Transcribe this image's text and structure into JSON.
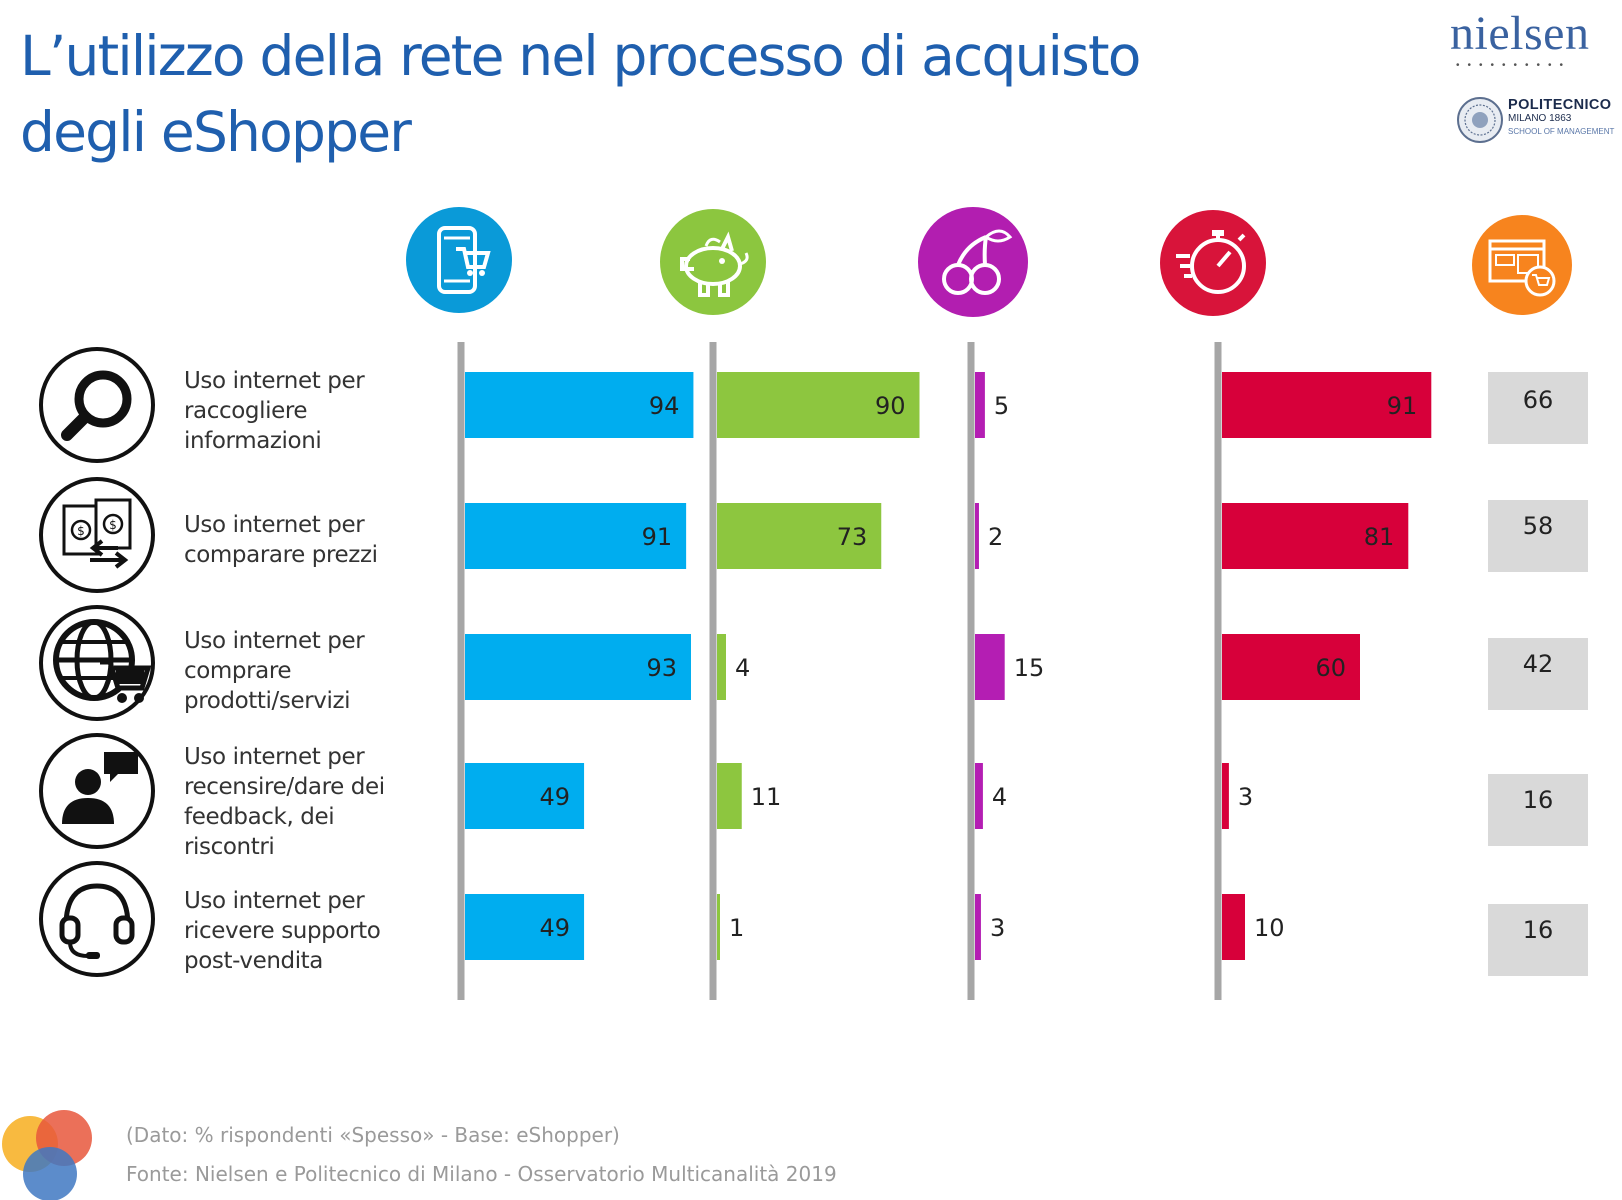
{
  "title": {
    "line1": "L’utilizzo della rete nel processo di acquisto",
    "line2": "degli eShopper"
  },
  "logos": {
    "nielsen": "nielsen",
    "polimi_name": "POLITECNICO",
    "polimi_city": "MILANO 1863",
    "polimi_school": "SCHOOL OF MANAGEMENT"
  },
  "segments": [
    {
      "icon": "smartphone-cart-icon",
      "color": "#0a9ad8"
    },
    {
      "icon": "piggy-bank-icon",
      "color": "#8cc63f"
    },
    {
      "icon": "cherries-icon",
      "color": "#b21eb0"
    },
    {
      "icon": "stopwatch-icon",
      "color": "#d8143a"
    },
    {
      "icon": "ecommerce-screen-icon",
      "color": "#f7841e"
    }
  ],
  "rows": [
    {
      "label": "Uso internet per\nraccogliere\ninformazioni",
      "icon": "magnifier-icon"
    },
    {
      "label": "Uso internet per\ncomparare prezzi",
      "icon": "price-compare-icon"
    },
    {
      "label": "Uso internet per\ncomprare\nprodotti/servizi",
      "icon": "globe-cart-icon"
    },
    {
      "label": "Uso internet per\nrecensire/dare dei\nfeedback, dei\nriscontri",
      "icon": "review-speech-icon"
    },
    {
      "label": "Uso internet per\nricevere supporto\npost-vendita",
      "icon": "headset-icon"
    }
  ],
  "chart_data": {
    "type": "bar",
    "orientation": "horizontal",
    "categories": [
      "Uso internet per raccogliere informazioni",
      "Uso internet per comparare prezzi",
      "Uso internet per comprare prodotti/servizi",
      "Uso internet per recensire/dare dei feedback, dei riscontri",
      "Uso internet per ricevere supporto post-vendita"
    ],
    "series": [
      {
        "name": "smartphone-cart",
        "color": "#00adef",
        "values": [
          94,
          91,
          93,
          49,
          49
        ]
      },
      {
        "name": "piggy-bank",
        "color": "#8dc63f",
        "values": [
          90,
          73,
          4,
          11,
          1
        ]
      },
      {
        "name": "cherries",
        "color": "#b41eb3",
        "values": [
          5,
          2,
          15,
          4,
          3
        ]
      },
      {
        "name": "stopwatch",
        "color": "#d7003a",
        "values": [
          91,
          81,
          60,
          3,
          10
        ]
      }
    ],
    "totals": {
      "name": "ecommerce",
      "values": [
        66,
        58,
        42,
        16,
        16
      ]
    },
    "unit": "%",
    "xlim": [
      0,
      100
    ]
  },
  "footer": {
    "base": "(Dato: % rispondenti «Spesso» - Base: eShopper)",
    "source": "Fonte: Nielsen e Politecnico di Milano - Osservatorio Multicanalità 2019"
  }
}
